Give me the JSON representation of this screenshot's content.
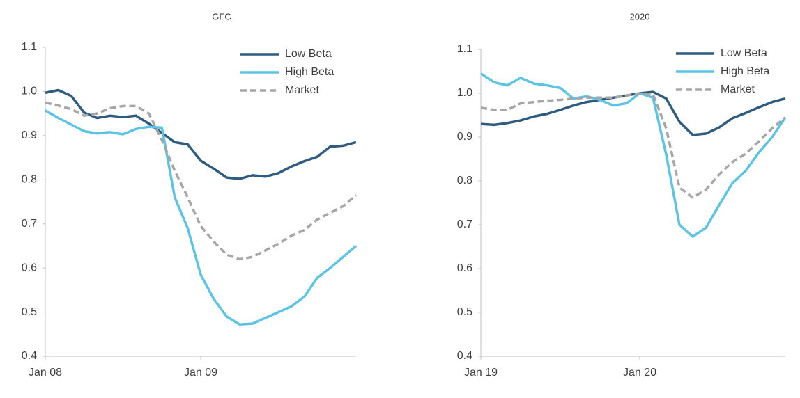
{
  "chart_data": [
    {
      "type": "line",
      "title": "GFC",
      "categories": [
        "Jan 08",
        null,
        null,
        null,
        null,
        null,
        null,
        null,
        null,
        null,
        null,
        null,
        "Jan 09",
        null,
        null,
        null,
        null,
        null,
        null,
        null,
        null,
        null,
        null,
        null,
        null
      ],
      "series": [
        {
          "name": "Low Beta",
          "color": "#2e5b80",
          "dashed": false,
          "values": [
            0.997,
            1.003,
            0.99,
            0.952,
            0.94,
            0.945,
            0.942,
            0.945,
            0.927,
            0.906,
            0.885,
            0.88,
            0.843,
            0.825,
            0.805,
            0.802,
            0.81,
            0.807,
            0.815,
            0.83,
            0.842,
            0.852,
            0.875,
            0.877,
            0.885
          ]
        },
        {
          "name": "High Beta",
          "color": "#5bc4e6",
          "dashed": false,
          "values": [
            0.957,
            0.94,
            0.925,
            0.91,
            0.905,
            0.908,
            0.903,
            0.915,
            0.92,
            0.918,
            0.76,
            0.69,
            0.585,
            0.53,
            0.49,
            0.472,
            0.474,
            0.487,
            0.5,
            0.513,
            0.535,
            0.578,
            0.6,
            0.625,
            0.65
          ]
        },
        {
          "name": "Market",
          "color": "#a6a6a6",
          "dashed": true,
          "values": [
            0.975,
            0.968,
            0.96,
            0.945,
            0.95,
            0.962,
            0.967,
            0.967,
            0.95,
            0.89,
            0.82,
            0.76,
            0.695,
            0.66,
            0.63,
            0.62,
            0.625,
            0.64,
            0.655,
            0.673,
            0.686,
            0.71,
            0.725,
            0.74,
            0.765
          ]
        }
      ],
      "ylim": [
        0.4,
        1.1
      ],
      "yticks": [
        0.4,
        0.5,
        0.6,
        0.7,
        0.8,
        0.9,
        {
          "value": 1,
          "label": "1.0"
        },
        1.1
      ],
      "grid": false,
      "legend": "upper right"
    },
    {
      "type": "line",
      "title": "2020",
      "categories": [
        "Jan 19",
        null,
        null,
        null,
        null,
        null,
        null,
        null,
        null,
        null,
        null,
        null,
        "Jan 20",
        null,
        null,
        null,
        null,
        null,
        null,
        null,
        null,
        null,
        null,
        null
      ],
      "series": [
        {
          "name": "Low Beta",
          "color": "#2e5b80",
          "dashed": false,
          "values": [
            0.93,
            0.928,
            0.932,
            0.938,
            0.947,
            0.953,
            0.962,
            0.972,
            0.98,
            0.985,
            0.99,
            0.995,
            1.0,
            1.003,
            0.988,
            0.935,
            0.905,
            0.908,
            0.922,
            0.943,
            0.955,
            0.968,
            0.98,
            0.988
          ]
        },
        {
          "name": "High Beta",
          "color": "#5bc4e6",
          "dashed": false,
          "values": [
            1.045,
            1.025,
            1.018,
            1.035,
            1.022,
            1.018,
            1.012,
            0.988,
            0.993,
            0.985,
            0.972,
            0.977,
            1.0,
            0.99,
            0.86,
            0.7,
            0.673,
            0.693,
            0.745,
            0.795,
            0.823,
            0.865,
            0.9,
            0.945
          ]
        },
        {
          "name": "Market",
          "color": "#a6a6a6",
          "dashed": true,
          "values": [
            0.967,
            0.962,
            0.962,
            0.977,
            0.98,
            0.983,
            0.985,
            0.988,
            0.99,
            0.99,
            0.99,
            0.995,
            1.0,
            0.998,
            0.92,
            0.785,
            0.762,
            0.78,
            0.815,
            0.843,
            0.862,
            0.89,
            0.92,
            0.945
          ]
        }
      ],
      "ylim": [
        0.4,
        1.1
      ],
      "yticks": [
        0.4,
        0.5,
        0.6,
        0.7,
        0.8,
        0.9,
        {
          "value": 1,
          "label": "1.0"
        },
        1.1
      ],
      "grid": false,
      "legend": "upper right"
    }
  ]
}
